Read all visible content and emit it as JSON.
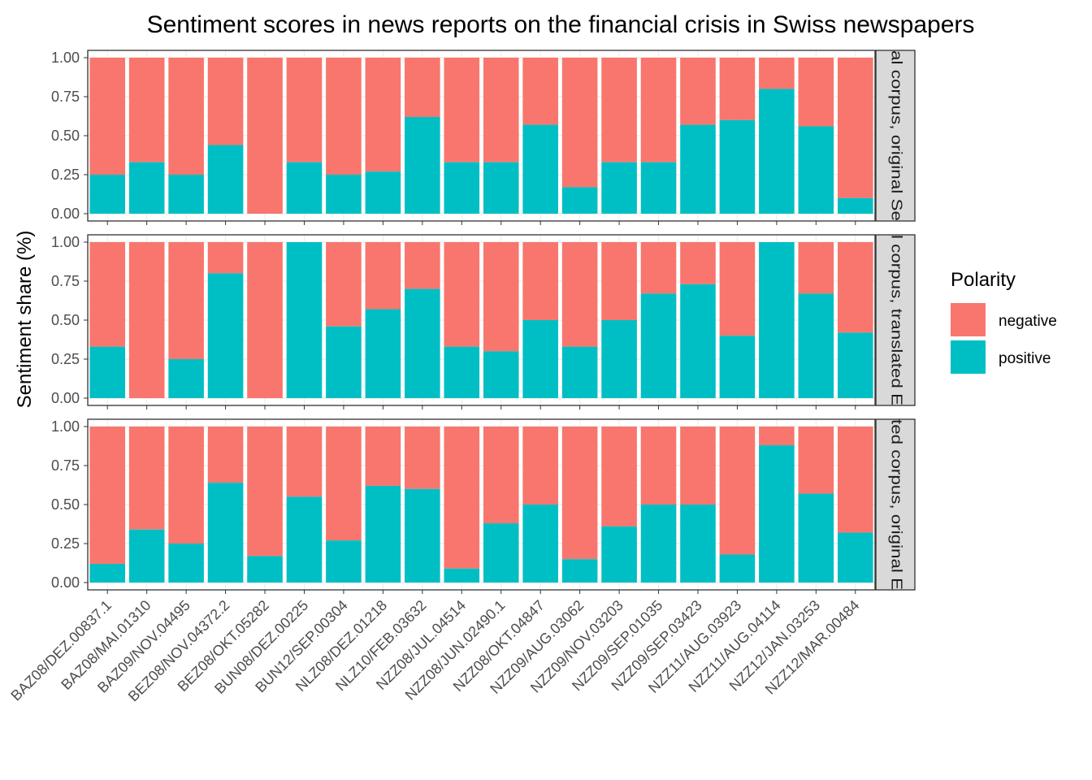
{
  "chart_data": {
    "type": "bar",
    "stacked": true,
    "title": "Sentiment scores in news reports on the financial crisis in Swiss newspapers",
    "ylabel": "Sentiment share (%)",
    "xlabel": "",
    "ylim": [
      0,
      1
    ],
    "yticks": [
      "0.00",
      "0.25",
      "0.50",
      "0.75",
      "1.00"
    ],
    "grid": true,
    "legend": {
      "title": "Polarity",
      "position": "right",
      "entries": [
        {
          "name": "negative",
          "color": "#F8766D"
        },
        {
          "name": "positive",
          "color": "#00BFC4"
        }
      ]
    },
    "categories": [
      "BAZ08/DEZ.00837.1",
      "BAZ08/MAI.01310",
      "BAZ09/NOV.04495",
      "BEZ08/NOV.04372.2",
      "BEZ08/OKT.05282",
      "BUN08/DEZ.00225",
      "BUN12/SEP.00304",
      "NLZ08/DEZ.01218",
      "NLZ10/FEB.03632",
      "NZZ08/JUL.04514",
      "NZZ08/JUN.02490.1",
      "NZZ08/OKT.04847",
      "NZZ09/AUG.03062",
      "NZZ09/NOV.03203",
      "NZZ09/SEP.01035",
      "NZZ09/SEP.03423",
      "NZZ11/AUG.03923",
      "NZZ11/AUG.04114",
      "NZZ12/JAN.03253",
      "NZZ12/MAR.00484"
    ],
    "panels": [
      {
        "strip": "al corpus, original Se",
        "positive": [
          0.25,
          0.33,
          0.25,
          0.44,
          0.0,
          0.33,
          0.25,
          0.27,
          0.62,
          0.33,
          0.33,
          0.57,
          0.17,
          0.33,
          0.33,
          0.57,
          0.6,
          0.8,
          0.56,
          0.1
        ]
      },
      {
        "strip": "l corpus, translated E",
        "positive": [
          0.33,
          0.0,
          0.25,
          0.8,
          0.0,
          1.0,
          0.46,
          0.57,
          0.7,
          0.33,
          0.3,
          0.5,
          0.33,
          0.5,
          0.67,
          0.73,
          0.4,
          1.0,
          0.67,
          0.42
        ]
      },
      {
        "strip": "ted corpus, original E",
        "positive": [
          0.12,
          0.34,
          0.25,
          0.64,
          0.17,
          0.55,
          0.27,
          0.62,
          0.6,
          0.09,
          0.38,
          0.5,
          0.15,
          0.36,
          0.5,
          0.5,
          0.18,
          0.88,
          0.57,
          0.32
        ]
      }
    ]
  }
}
